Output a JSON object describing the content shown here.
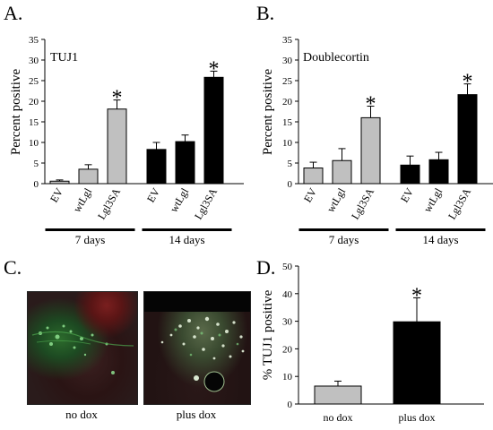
{
  "panel_letters": {
    "a": "A.",
    "b": "B.",
    "c": "C.",
    "d": "D."
  },
  "colors": {
    "gray": "#c0c0c0",
    "black": "#000000"
  },
  "chart_data": [
    {
      "panel": "A.",
      "type": "bar",
      "label": "TUJ1",
      "ylabel": "Percent positive",
      "ylim": [
        0,
        35
      ],
      "yticks": [
        "0",
        "5",
        "10",
        "15",
        "20",
        "25",
        "30",
        "35"
      ],
      "categories": [
        "EV",
        "wtLgl",
        "Lgl3SA",
        "EV",
        "wtLgl",
        "Lgl3SA"
      ],
      "values": [
        0.6,
        3.5,
        18.1,
        8.3,
        10.2,
        25.8
      ],
      "errors": [
        0.3,
        1.1,
        2.2,
        1.7,
        1.6,
        1.5
      ],
      "colors": [
        "gray",
        "gray",
        "gray",
        "black",
        "black",
        "black"
      ],
      "significant": [
        "",
        "",
        "*",
        "",
        "",
        "*"
      ],
      "groups": [
        "7 days",
        "14 days"
      ]
    },
    {
      "panel": "B.",
      "type": "bar",
      "label": "Doublecortin",
      "ylabel": "Percent positive",
      "ylim": [
        0,
        35
      ],
      "yticks": [
        "0",
        "5",
        "10",
        "15",
        "20",
        "25",
        "30",
        "35"
      ],
      "categories": [
        "EV",
        "wtLgl",
        "Lgl3SA",
        "EV",
        "wtLgl",
        "Lgl3SA"
      ],
      "values": [
        3.8,
        5.6,
        16.0,
        4.5,
        5.8,
        21.6
      ],
      "errors": [
        1.4,
        2.9,
        2.8,
        2.2,
        1.8,
        2.6
      ],
      "colors": [
        "gray",
        "gray",
        "gray",
        "black",
        "black",
        "black"
      ],
      "significant": [
        "",
        "",
        "*",
        "",
        "",
        "*"
      ],
      "groups": [
        "7 days",
        "14 days"
      ]
    },
    {
      "panel": "D.",
      "type": "bar",
      "label": "",
      "ylabel": "% TUJ1 positive",
      "ylim": [
        0,
        50
      ],
      "yticks": [
        "0",
        "10",
        "20",
        "30",
        "40",
        "50"
      ],
      "categories": [
        "no dox",
        "plus dox"
      ],
      "values": [
        6.5,
        29.8
      ],
      "errors": [
        1.8,
        8.7
      ],
      "colors": [
        "gray",
        "black"
      ],
      "significant": [
        "",
        "*"
      ],
      "groups": []
    }
  ],
  "micrographs": {
    "left_caption": "no dox",
    "right_caption": "plus dox"
  }
}
